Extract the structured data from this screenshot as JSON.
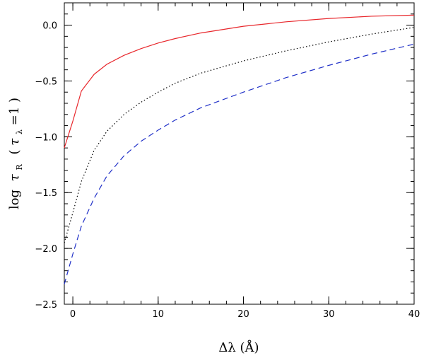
{
  "chart_data": {
    "type": "line",
    "xlabel": "Δλ  (Å)",
    "ylabel": {
      "prefix": "log",
      "symbol": "τ",
      "subscript": "R",
      "paren_symbol": "τ",
      "paren_subscript": "λ",
      "paren_rest": "=1"
    },
    "xlim": [
      -1,
      40
    ],
    "ylim": [
      -2.5,
      0.2
    ],
    "xticks_major": [
      0,
      10,
      20,
      30,
      40
    ],
    "xtick_labels": [
      "0",
      "10",
      "20",
      "30",
      "40"
    ],
    "yticks_major": [
      -2.5,
      -2.0,
      -1.5,
      -1.0,
      -0.5,
      0.0
    ],
    "ytick_labels": [
      "−2.5",
      "−2.0",
      "−1.5",
      "−1.0",
      "−0.5",
      "0.0"
    ],
    "grid": false,
    "series": [
      {
        "color": "#e8262b",
        "style": "solid",
        "x": [
          -1,
          0,
          1,
          2.5,
          4,
          6,
          8,
          10,
          12,
          15,
          20,
          25,
          30,
          35,
          40
        ],
        "y": [
          -1.1,
          -0.86,
          -0.59,
          -0.44,
          -0.35,
          -0.27,
          -0.21,
          -0.16,
          -0.12,
          -0.07,
          -0.01,
          0.03,
          0.06,
          0.08,
          0.09
        ]
      },
      {
        "color": "#000000",
        "style": "dotted",
        "x": [
          -1,
          0,
          1,
          2.5,
          4,
          6,
          8,
          10,
          12,
          15,
          20,
          25,
          30,
          35,
          40
        ],
        "y": [
          -1.95,
          -1.68,
          -1.4,
          -1.12,
          -0.95,
          -0.8,
          -0.69,
          -0.6,
          -0.52,
          -0.43,
          -0.32,
          -0.23,
          -0.15,
          -0.08,
          -0.02
        ]
      },
      {
        "color": "#2030c8",
        "style": "dashed",
        "x": [
          -1,
          0,
          1,
          2.5,
          4,
          6,
          8,
          10,
          12,
          15,
          20,
          25,
          30,
          35,
          40
        ],
        "y": [
          -2.32,
          -2.05,
          -1.8,
          -1.55,
          -1.35,
          -1.17,
          -1.04,
          -0.94,
          -0.85,
          -0.74,
          -0.6,
          -0.47,
          -0.36,
          -0.26,
          -0.17
        ]
      }
    ]
  }
}
